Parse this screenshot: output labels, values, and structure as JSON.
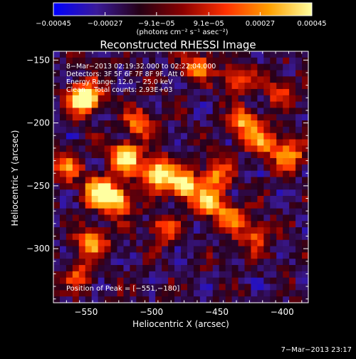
{
  "chart_data": {
    "type": "heatmap",
    "title": "Reconstructed RHESSI Image",
    "xlabel": "Heliocentric X (arcsec)",
    "ylabel": "Heliocentric Y (arcsec)",
    "xlim": [
      -575,
      -380
    ],
    "ylim": [
      -343,
      -143
    ],
    "x_ticks": [
      -550,
      -500,
      -450,
      -400
    ],
    "y_ticks": [
      -150,
      -200,
      -250,
      -300
    ],
    "colorbar": {
      "range": [
        -0.00045,
        0.00045
      ],
      "ticks": [
        -0.00045,
        -0.00027,
        -9.1e-05,
        9.1e-05,
        0.00027,
        0.00045
      ],
      "tick_labels": [
        "−0.00045",
        "−0.00027",
        "−9.1e−05",
        "9.1e−05",
        "0.00027",
        "0.00045"
      ],
      "unit_label": "(photons cm⁻² s⁻¹ asec⁻²)",
      "colors": [
        "#0000ff",
        "#3a1a9a",
        "#250015",
        "#8a0000",
        "#ff3000",
        "#ffa000",
        "#ffffa0"
      ]
    },
    "peak_position": [
      -551,
      -180
    ],
    "sources": [
      {
        "x": -551,
        "y": -180,
        "peak": 1.0
      },
      {
        "x": -520,
        "y": -228,
        "peak": 0.8
      },
      {
        "x": -495,
        "y": -240,
        "peak": 0.85
      },
      {
        "x": -475,
        "y": -250,
        "peak": 0.75
      },
      {
        "x": -540,
        "y": -255,
        "peak": 0.8
      },
      {
        "x": -525,
        "y": -262,
        "peak": 0.6
      },
      {
        "x": -455,
        "y": -262,
        "peak": 0.55
      },
      {
        "x": -440,
        "y": -275,
        "peak": 0.45
      },
      {
        "x": -420,
        "y": -290,
        "peak": 0.4
      },
      {
        "x": -450,
        "y": -240,
        "peak": 0.45
      },
      {
        "x": -430,
        "y": -200,
        "peak": 0.5
      },
      {
        "x": -415,
        "y": -215,
        "peak": 0.45
      },
      {
        "x": -395,
        "y": -225,
        "peak": 0.55
      },
      {
        "x": -510,
        "y": -200,
        "peak": 0.45
      },
      {
        "x": -465,
        "y": -155,
        "peak": 0.45
      },
      {
        "x": -435,
        "y": -165,
        "peak": 0.4
      },
      {
        "x": -545,
        "y": -295,
        "peak": 0.55
      },
      {
        "x": -490,
        "y": -285,
        "peak": 0.4
      },
      {
        "x": -555,
        "y": -320,
        "peak": 0.35
      },
      {
        "x": -400,
        "y": -175,
        "peak": 0.35
      },
      {
        "x": -565,
        "y": -235,
        "peak": 0.4
      }
    ]
  },
  "header": {
    "time_range": "8−Mar−2013 02:19:32.000 to 02:22:04.000",
    "detectors": "Detectors: 3F 5F 6F 7F 8F 9F, Att 0",
    "energy_range": "Energy Range: 12.0 − 25.0 keV",
    "method": "Clean",
    "total_counts": "Total counts: 2.93E+03"
  },
  "peak_label": "Position of Peak = [−551,−180]",
  "timestamp": "7−Mar−2013 23:17"
}
